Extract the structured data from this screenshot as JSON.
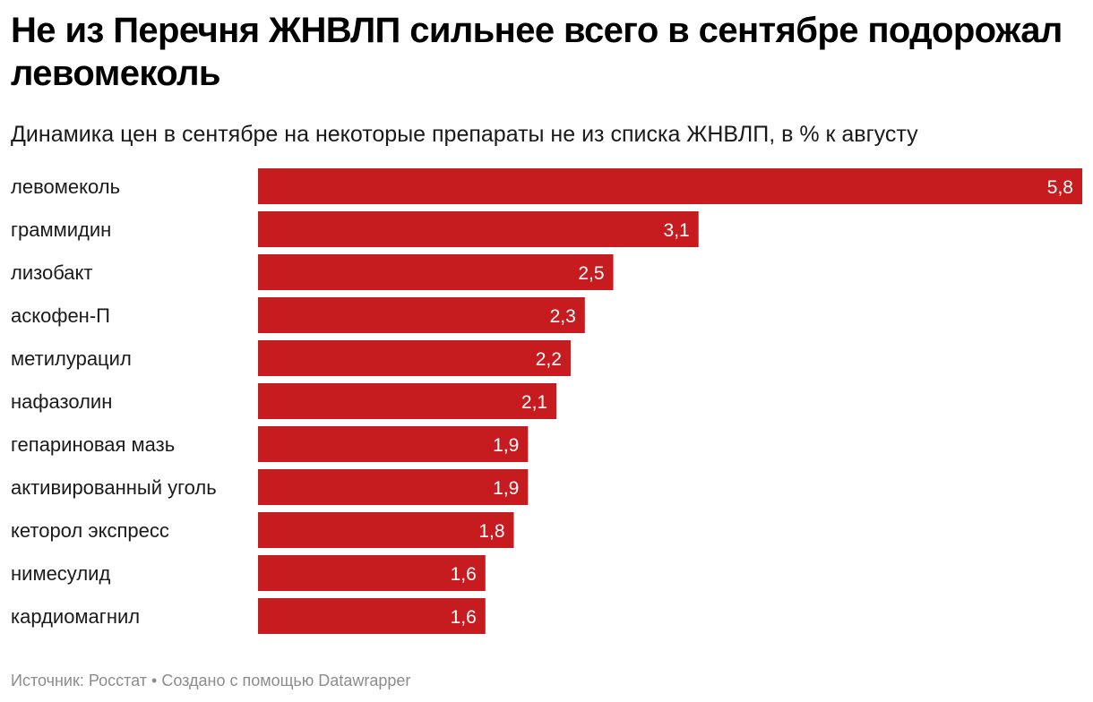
{
  "title": "Не из Перечня ЖНВЛП сильнее всего в сентябре подорожал левомеколь",
  "subtitle": "Динамика цен в сентябре на некоторые препараты не из списка ЖНВЛП, в % к августу",
  "footer": {
    "source_label": "Источник:",
    "source_name": "Росстат",
    "separator": "•",
    "credit": "Создано с помощью Datawrapper"
  },
  "colors": {
    "bar": "#c71c1f",
    "value_text": "#ffffff"
  },
  "chart_data": {
    "type": "bar",
    "orientation": "horizontal",
    "categories": [
      "левомеколь",
      "граммидин",
      "лизобакт",
      "аскофен-П",
      "метилурацил",
      "нафазолин",
      "гепариновая мазь",
      "активированный уголь",
      "кеторол экспресс",
      "нимесулид",
      "кардиомагнил"
    ],
    "values": [
      5.8,
      3.1,
      2.5,
      2.3,
      2.2,
      2.1,
      1.9,
      1.9,
      1.8,
      1.6,
      1.6
    ],
    "value_labels": [
      "5,8",
      "3,1",
      "2,5",
      "2,3",
      "2,2",
      "2,1",
      "1,9",
      "1,9",
      "1,8",
      "1,6",
      "1,6"
    ],
    "xlim": [
      0,
      5.8
    ],
    "grid": false,
    "legend": "none"
  }
}
